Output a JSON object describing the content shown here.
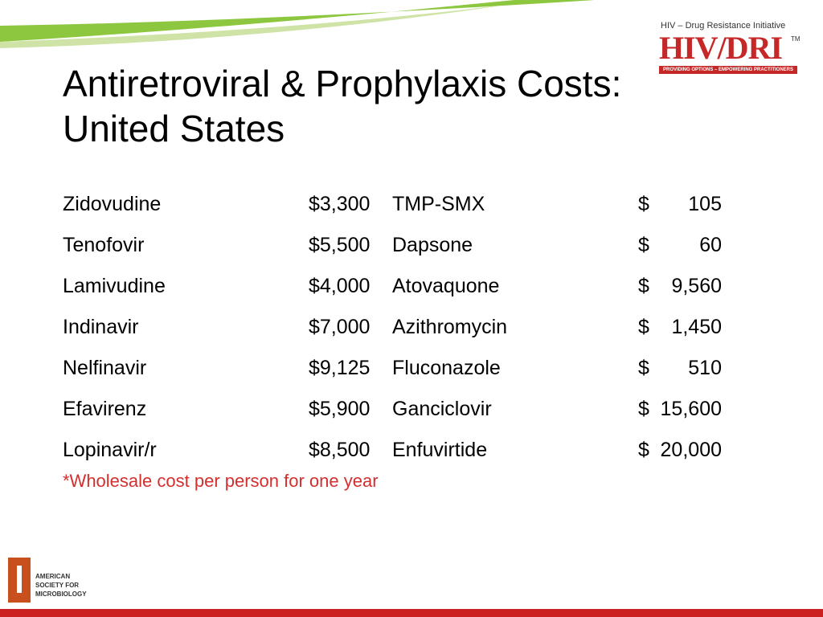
{
  "logo": {
    "tagline": "HIV – Drug Resistance Initiative",
    "wordmark": "HIV/DRI",
    "tm": "TM",
    "banner": "PROVIDING OPTIONS – EMPOWERING PRACTITIONERS"
  },
  "title": {
    "line1": "Antiretroviral & Prophylaxis Costs:",
    "line2": "United States"
  },
  "rows": [
    {
      "drug1": "Zidovudine",
      "cost1": "$3,300",
      "drug2": "TMP-SMX",
      "cost2_symbol": "$",
      "cost2_amount": "105"
    },
    {
      "drug1": "Tenofovir",
      "cost1": "$5,500",
      "drug2": "Dapsone",
      "cost2_symbol": "$",
      "cost2_amount": "60"
    },
    {
      "drug1": "Lamivudine",
      "cost1": "$4,000",
      "drug2": "Atovaquone",
      "cost2_symbol": "$",
      "cost2_amount": "9,560"
    },
    {
      "drug1": "Indinavir",
      "cost1": "$7,000",
      "drug2": "Azithromycin",
      "cost2_symbol": "$",
      "cost2_amount": "1,450"
    },
    {
      "drug1": "Nelfinavir",
      "cost1": "$9,125",
      "drug2": "Fluconazole",
      "cost2_symbol": "$",
      "cost2_amount": "510"
    },
    {
      "drug1": "Efavirenz",
      "cost1": "$5,900",
      "drug2": "Ganciclovir",
      "cost2_symbol": "$",
      "cost2_amount": "15,600"
    },
    {
      "drug1": "Lopinavir/r",
      "cost1": "$8,500",
      "drug2": "Enfuvirtide",
      "cost2_symbol": "$",
      "cost2_amount": "20,000"
    }
  ],
  "footnote": "*Wholesale cost per person for one year",
  "asm": {
    "line1": "AMERICAN",
    "line2": "SOCIETY FOR",
    "line3": "MICROBIOLOGY"
  },
  "colors": {
    "accent_green": "#8dc63f",
    "accent_red": "#cc1f1f",
    "footnote_red": "#d32f2f"
  }
}
